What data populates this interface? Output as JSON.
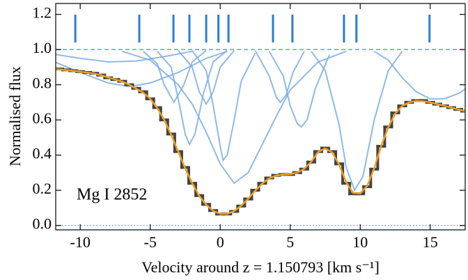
{
  "chart_data": {
    "type": "line",
    "xlabel": "Velocity around z = 1.150793 [km s⁻¹]",
    "ylabel": "Normalised flux",
    "annotation": "Mg I 2852",
    "xlim": [
      -11.75,
      17.5
    ],
    "ylim": [
      -0.025,
      1.262
    ],
    "xticks": [
      -10,
      -5,
      0,
      5,
      10,
      15
    ],
    "yticks": [
      {
        "value": 0,
        "label": "0.0"
      },
      0.2,
      0.4,
      0.6,
      0.8,
      {
        "value": 1,
        "label": "1.0"
      },
      1.2
    ],
    "continuum": 1,
    "zero_level": 0,
    "reference_color": "#17c8d0",
    "x": [
      -12,
      -11.5,
      -11,
      -10.5,
      -10,
      -9.5,
      -9,
      -8.5,
      -8,
      -7.5,
      -7,
      -6.5,
      -6,
      -5.5,
      -5,
      -4.5,
      -4,
      -3.5,
      -3,
      -2.5,
      -2,
      -1.5,
      -1,
      -0.5,
      0,
      0.5,
      1,
      1.5,
      2,
      2.5,
      3,
      3.5,
      4,
      4.5,
      5,
      5.5,
      6,
      6.5,
      7,
      7.5,
      8,
      8.5,
      9,
      9.5,
      10,
      10.5,
      11,
      11.5,
      12,
      12.5,
      13,
      13.5,
      14,
      14.5,
      15,
      15.5,
      16,
      16.5,
      17,
      17.5,
      18
    ],
    "series": [
      {
        "color": "#444444",
        "drawstyle": "steps-mid",
        "values": [
          0.89,
          0.89,
          0.885,
          0.88,
          0.875,
          0.87,
          0.865,
          0.855,
          0.84,
          0.83,
          0.82,
          0.8,
          0.78,
          0.76,
          0.72,
          0.67,
          0.6,
          0.52,
          0.42,
          0.33,
          0.24,
          0.17,
          0.12,
          0.085,
          0.065,
          0.065,
          0.08,
          0.11,
          0.15,
          0.2,
          0.24,
          0.27,
          0.285,
          0.29,
          0.29,
          0.3,
          0.32,
          0.36,
          0.42,
          0.44,
          0.42,
          0.35,
          0.24,
          0.18,
          0.18,
          0.22,
          0.32,
          0.45,
          0.56,
          0.64,
          0.68,
          0.7,
          0.71,
          0.71,
          0.7,
          0.69,
          0.68,
          0.67,
          0.66,
          0.65,
          0.64
        ]
      },
      {
        "color": "#f0a020",
        "values": [
          0.89,
          0.888,
          0.884,
          0.879,
          0.874,
          0.869,
          0.863,
          0.854,
          0.842,
          0.83,
          0.818,
          0.8,
          0.778,
          0.755,
          0.72,
          0.668,
          0.6,
          0.515,
          0.42,
          0.325,
          0.24,
          0.168,
          0.118,
          0.083,
          0.066,
          0.066,
          0.082,
          0.112,
          0.152,
          0.198,
          0.238,
          0.268,
          0.284,
          0.29,
          0.292,
          0.3,
          0.322,
          0.362,
          0.418,
          0.438,
          0.415,
          0.345,
          0.245,
          0.185,
          0.182,
          0.225,
          0.325,
          0.452,
          0.558,
          0.636,
          0.68,
          0.7,
          0.708,
          0.706,
          0.7,
          0.69,
          0.68,
          0.67,
          0.66,
          0.65,
          0.64
        ]
      }
    ],
    "component_color": "#7aaee0",
    "components": [
      {
        "x": [
          -12,
          -10,
          -8,
          -6.5,
          -5,
          -3,
          -1,
          0.5
        ],
        "values": [
          0.935,
          0.87,
          0.81,
          0.79,
          0.81,
          0.87,
          0.95,
          0.99
        ]
      },
      {
        "x": [
          -12,
          -10,
          -8,
          -6,
          -4,
          -2
        ],
        "values": [
          0.975,
          0.95,
          0.93,
          0.935,
          0.96,
          0.99
        ]
      },
      {
        "x": [
          -7,
          -5,
          -3,
          -2,
          -1,
          0,
          1,
          2,
          3,
          4,
          5,
          7,
          9
        ],
        "values": [
          0.99,
          0.94,
          0.8,
          0.69,
          0.53,
          0.35,
          0.24,
          0.3,
          0.46,
          0.62,
          0.77,
          0.93,
          0.99
        ]
      },
      {
        "x": [
          -4.5,
          -3.5,
          -3,
          -2.5,
          -2.2,
          -1.8,
          -1.2,
          -0.5,
          0.5
        ],
        "values": [
          0.99,
          0.9,
          0.72,
          0.52,
          0.46,
          0.52,
          0.75,
          0.93,
          0.995
        ]
      },
      {
        "x": [
          -5.5,
          -4.5,
          -4,
          -3.3,
          -2.6,
          -2,
          -1
        ],
        "values": [
          0.99,
          0.92,
          0.8,
          0.7,
          0.8,
          0.93,
          0.995
        ]
      },
      {
        "x": [
          -3,
          -2,
          -1.5,
          -1,
          -0.5,
          0,
          1
        ],
        "values": [
          0.995,
          0.9,
          0.76,
          0.69,
          0.76,
          0.9,
          0.995
        ]
      },
      {
        "x": [
          -2,
          -1,
          -0.5,
          0,
          0.2,
          0.5,
          1,
          1.5,
          2.5
        ],
        "values": [
          0.995,
          0.88,
          0.68,
          0.45,
          0.37,
          0.4,
          0.6,
          0.82,
          0.98
        ]
      },
      {
        "x": [
          2.5,
          3.5,
          4,
          4.3,
          4.7,
          5.2,
          6
        ],
        "values": [
          0.995,
          0.85,
          0.73,
          0.7,
          0.74,
          0.87,
          0.99
        ]
      },
      {
        "x": [
          3.5,
          4.5,
          5,
          5.5,
          5.8,
          6.2,
          6.8,
          7.8
        ],
        "values": [
          0.99,
          0.85,
          0.68,
          0.58,
          0.56,
          0.6,
          0.78,
          0.97
        ]
      },
      {
        "x": [
          6.5,
          7.5,
          8.5,
          9,
          9.6,
          10.2,
          11,
          12,
          13
        ],
        "values": [
          0.99,
          0.88,
          0.57,
          0.33,
          0.2,
          0.28,
          0.6,
          0.88,
          0.99
        ]
      },
      {
        "x": [
          11,
          12,
          13,
          14,
          15,
          16,
          17,
          18,
          18.7
        ],
        "values": [
          0.99,
          0.94,
          0.84,
          0.76,
          0.72,
          0.72,
          0.75,
          0.8,
          0.84
        ]
      }
    ],
    "marker_color": "#2a7fd0",
    "component_velocities": [
      -10.35,
      -5.78,
      -3.34,
      -2.2,
      -1.0,
      -0.13,
      0.59,
      3.77,
      5.16,
      8.84,
      9.73,
      14.95
    ]
  }
}
